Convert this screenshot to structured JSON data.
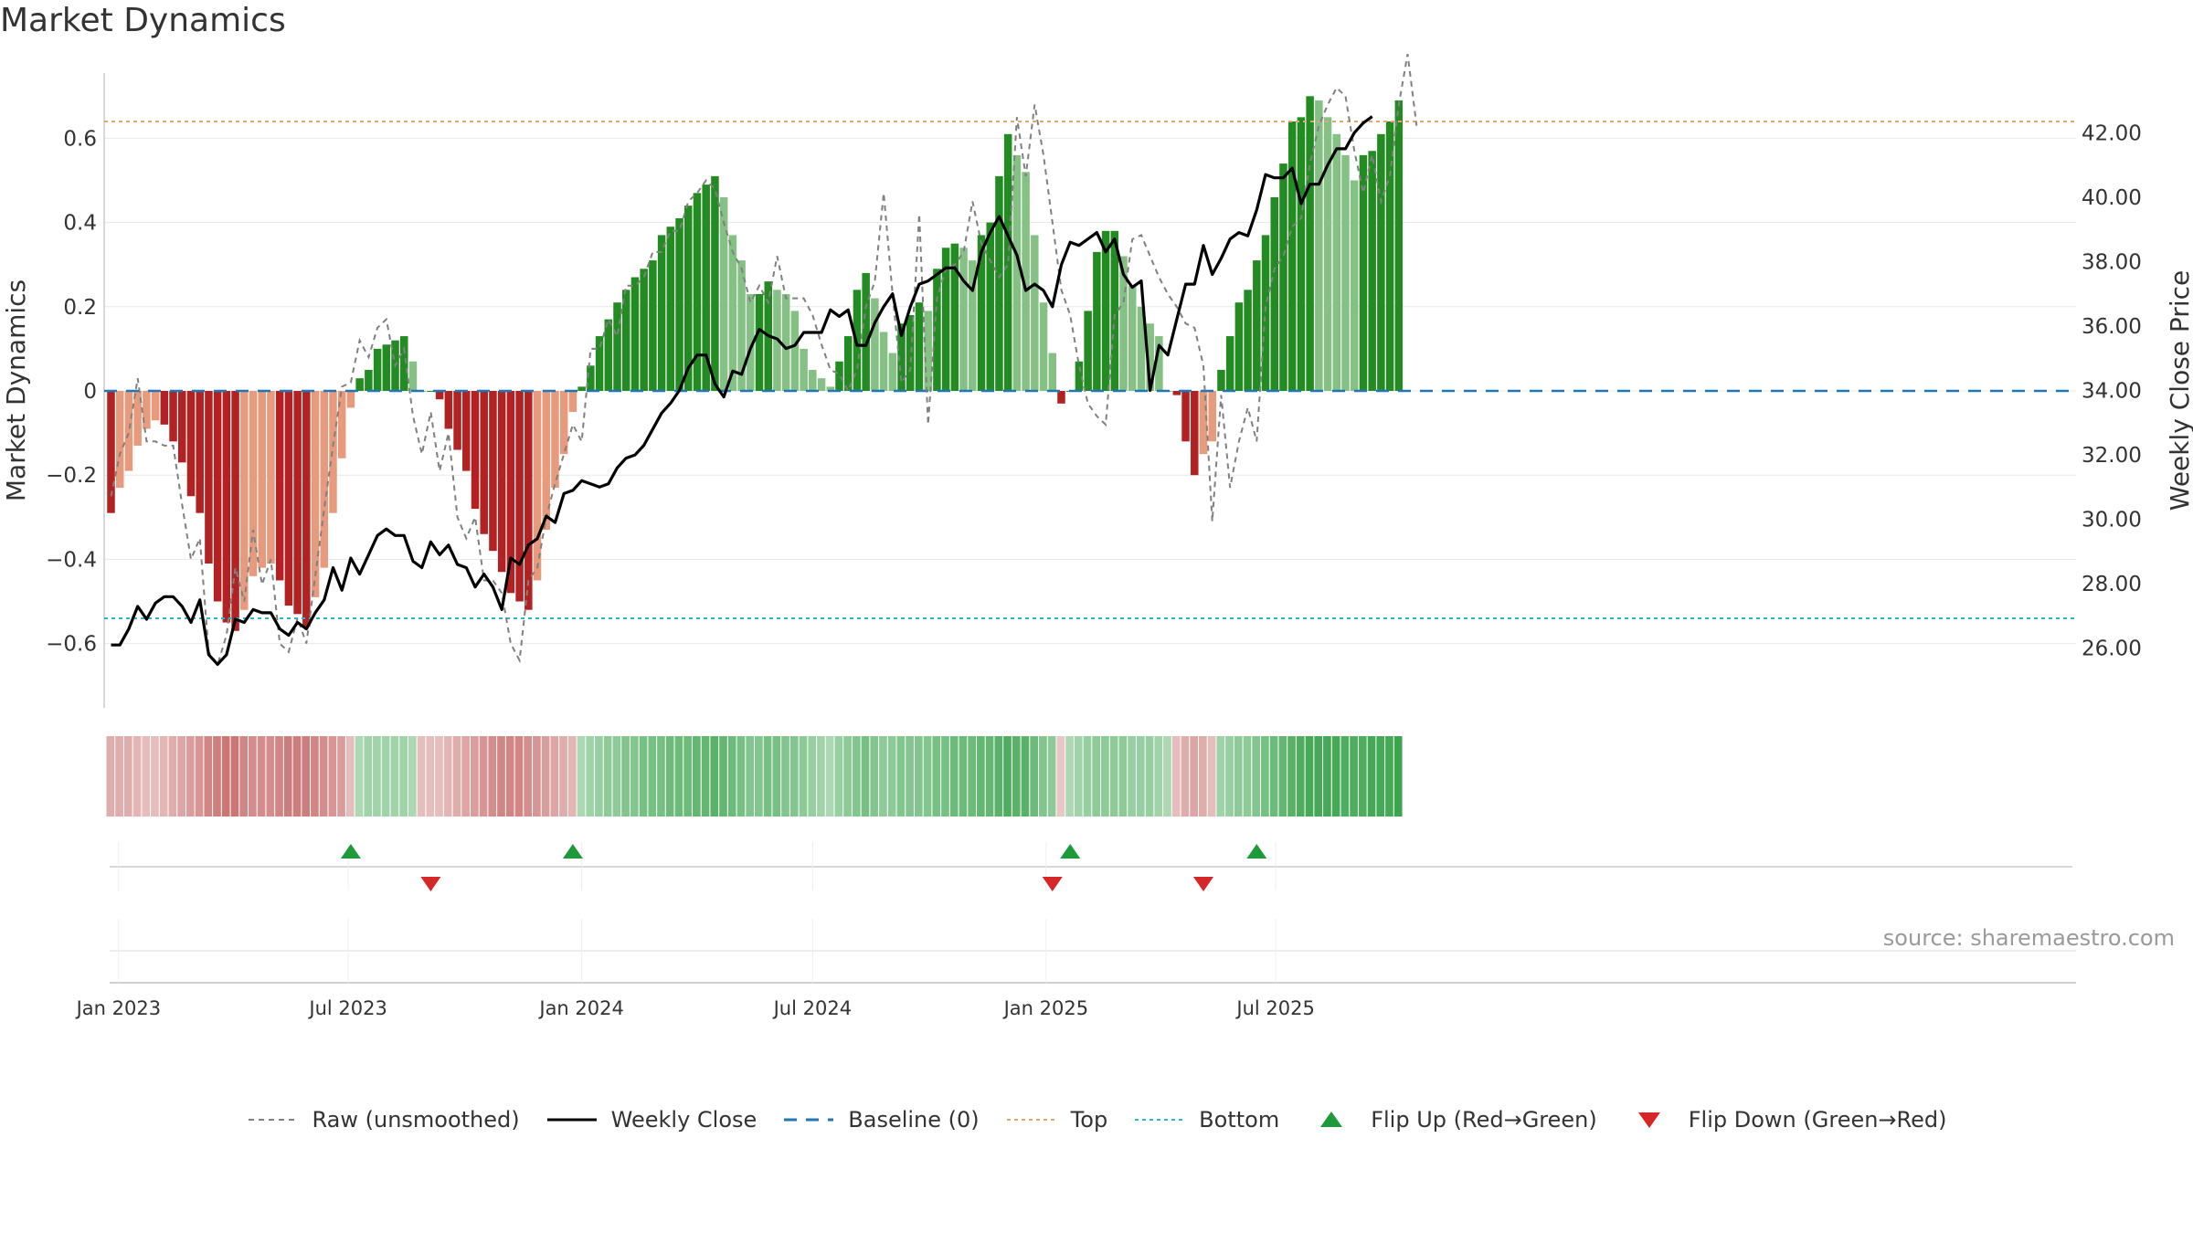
{
  "chart_data": {
    "type": "bar+line",
    "title": "Market Dynamics",
    "source_note": "source: sharemaestro.com",
    "start_date": "2022-12-26",
    "left_axis": {
      "label": "Market Dynamics",
      "ylim": [
        -0.75,
        0.75
      ],
      "ticks": [
        0.6,
        0.4,
        0.2,
        0,
        -0.2,
        -0.4,
        -0.6
      ],
      "tick_labels": [
        "0.6",
        "0.4",
        "0.2",
        "0",
        "−0.2",
        "−0.4",
        "−0.6"
      ]
    },
    "right_axis": {
      "label": "Weekly Close Price",
      "ylim": [
        24.15,
        43.85
      ],
      "ticks": [
        42,
        40,
        38,
        36,
        34,
        32,
        30,
        28,
        26
      ],
      "tick_labels": [
        "42.00",
        "40.00",
        "38.00",
        "36.00",
        "34.00",
        "32.00",
        "30.00",
        "28.00",
        "26.00"
      ]
    },
    "x_axis": {
      "ticks": [
        "2023-01-01",
        "2023-07-01",
        "2024-01-01",
        "2024-07-01",
        "2025-01-01",
        "2025-07-01"
      ],
      "tick_labels": [
        "Jan 2023",
        "Jul 2023",
        "Jan 2024",
        "Jul 2024",
        "Jan 2025",
        "Jul 2025"
      ]
    },
    "reference_lines": {
      "baseline": 0,
      "top": 0.64,
      "bottom": -0.54
    },
    "colors": {
      "neg_strong": "#b22222",
      "neg_weak": "#e89a7c",
      "pos_strong": "#228b22",
      "pos_weak": "#85c185",
      "close": "#000000",
      "raw": "#808080",
      "baseline": "#1f77b4",
      "top": "#e0a96d",
      "bottom": "#2ab7ca",
      "flip_up": "#1f9a3a",
      "flip_down": "#d62728"
    },
    "series": [
      {
        "name": "Raw (unsmoothed)",
        "values": [
          -0.25,
          -0.15,
          -0.1,
          0.03,
          -0.12,
          -0.12,
          -0.13,
          -0.13,
          -0.27,
          -0.4,
          -0.35,
          -0.62,
          -0.65,
          -0.58,
          -0.42,
          -0.5,
          -0.33,
          -0.46,
          -0.4,
          -0.6,
          -0.62,
          -0.54,
          -0.6,
          -0.44,
          -0.28,
          -0.13,
          0.01,
          0.02,
          0.12,
          0.08,
          0.15,
          0.17,
          0.06,
          0.1,
          -0.06,
          -0.15,
          -0.05,
          -0.19,
          -0.1,
          -0.3,
          -0.35,
          -0.3,
          -0.45,
          -0.45,
          -0.48,
          -0.6,
          -0.64,
          -0.45,
          -0.42,
          -0.3,
          -0.22,
          -0.15,
          -0.08,
          -0.12,
          0.1,
          0.1,
          0.17,
          0.13,
          0.25,
          0.25,
          0.27,
          0.33,
          0.33,
          0.38,
          0.38,
          0.45,
          0.47,
          0.5,
          0.48,
          0.4,
          0.33,
          0.29,
          0.21,
          0.25,
          0.21,
          0.32,
          0.22,
          0.22,
          0.22,
          0.18,
          0.11,
          0.05,
          0.04,
          0.0,
          0.05,
          0.2,
          0.26,
          0.47,
          0.23,
          0.02,
          0.05,
          0.42,
          -0.08,
          0.22,
          0.29,
          0.3,
          0.33,
          0.45,
          0.35,
          0.31,
          0.27,
          0.3,
          0.65,
          0.51,
          0.68,
          0.56,
          0.4,
          0.24,
          0.18,
          0.06,
          -0.03,
          -0.06,
          -0.08,
          0.18,
          0.21,
          0.36,
          0.37,
          0.32,
          0.27,
          0.23,
          0.2,
          0.16,
          0.15,
          0.06,
          -0.31,
          -0.01,
          -0.23,
          -0.12,
          -0.04,
          -0.12,
          0.2,
          0.29,
          0.32,
          0.39,
          0.41,
          0.54,
          0.63,
          0.68,
          0.72,
          0.7,
          0.57,
          0.47,
          0.56,
          0.45,
          0.51,
          0.68,
          0.8,
          0.63
        ]
      },
      {
        "name": "Weekly Close",
        "values": [
          26.1,
          26.1,
          26.6,
          27.3,
          26.9,
          27.4,
          27.6,
          27.6,
          27.3,
          26.8,
          27.5,
          25.8,
          25.5,
          25.8,
          26.9,
          26.8,
          27.2,
          27.1,
          27.1,
          26.6,
          26.4,
          26.8,
          26.6,
          27.1,
          27.5,
          28.5,
          27.8,
          28.8,
          28.3,
          28.9,
          29.5,
          29.7,
          29.5,
          29.5,
          28.7,
          28.5,
          29.3,
          28.9,
          29.2,
          28.6,
          28.5,
          27.9,
          28.3,
          27.9,
          27.2,
          28.8,
          28.6,
          29.2,
          29.4,
          30.1,
          29.9,
          30.8,
          30.9,
          31.2,
          31.1,
          31.0,
          31.1,
          31.6,
          31.9,
          32.0,
          32.3,
          32.8,
          33.3,
          33.6,
          34.0,
          34.7,
          35.1,
          35.1,
          34.2,
          33.8,
          34.6,
          34.5,
          35.3,
          35.9,
          35.7,
          35.6,
          35.3,
          35.4,
          35.8,
          35.8,
          35.8,
          36.5,
          36.3,
          36.5,
          35.4,
          35.4,
          36.1,
          36.6,
          37.0,
          35.7,
          36.6,
          37.3,
          37.4,
          37.6,
          37.8,
          37.8,
          37.4,
          37.1,
          38.3,
          38.9,
          39.4,
          38.8,
          38.2,
          37.1,
          37.3,
          37.1,
          36.6,
          37.9,
          38.6,
          38.5,
          38.7,
          38.9,
          38.3,
          38.7,
          37.6,
          37.2,
          37.4,
          34.0,
          35.4,
          35.1,
          36.2,
          37.3,
          37.3,
          38.5,
          37.6,
          38.1,
          38.7,
          38.9,
          38.8,
          39.6,
          40.7,
          40.6,
          40.6,
          40.9,
          39.8,
          40.4,
          40.4,
          41.0,
          41.5,
          41.5,
          42.0,
          42.3,
          42.5
        ]
      },
      {
        "name": "Market Dynamics",
        "values": [
          -0.29,
          -0.23,
          -0.19,
          -0.13,
          -0.09,
          -0.07,
          -0.08,
          -0.12,
          -0.17,
          -0.25,
          -0.29,
          -0.41,
          -0.5,
          -0.55,
          -0.57,
          -0.52,
          -0.44,
          -0.42,
          -0.41,
          -0.45,
          -0.51,
          -0.53,
          -0.56,
          -0.49,
          -0.42,
          -0.29,
          -0.16,
          -0.04,
          0.03,
          0.05,
          0.1,
          0.11,
          0.12,
          0.13,
          0.07,
          0.0,
          0.0,
          -0.02,
          -0.09,
          -0.14,
          -0.19,
          -0.28,
          -0.34,
          -0.38,
          -0.43,
          -0.48,
          -0.5,
          -0.52,
          -0.45,
          -0.33,
          -0.23,
          -0.15,
          -0.05,
          0.01,
          0.06,
          0.13,
          0.17,
          0.21,
          0.24,
          0.27,
          0.29,
          0.31,
          0.37,
          0.39,
          0.41,
          0.44,
          0.47,
          0.49,
          0.51,
          0.46,
          0.37,
          0.31,
          0.23,
          0.23,
          0.26,
          0.24,
          0.23,
          0.19,
          0.1,
          0.05,
          0.03,
          0.01,
          0.07,
          0.13,
          0.24,
          0.28,
          0.22,
          0.14,
          0.09,
          0.16,
          0.18,
          0.21,
          0.19,
          0.29,
          0.34,
          0.35,
          0.34,
          0.31,
          0.37,
          0.4,
          0.51,
          0.61,
          0.56,
          0.52,
          0.37,
          0.21,
          0.09,
          -0.03,
          0.0,
          0.07,
          0.19,
          0.33,
          0.38,
          0.38,
          0.32,
          0.25,
          0.2,
          0.16,
          0.13,
          0.0,
          -0.01,
          -0.12,
          -0.2,
          -0.15,
          -0.12,
          0.05,
          0.13,
          0.21,
          0.24,
          0.31,
          0.37,
          0.46,
          0.54,
          0.64,
          0.65,
          0.7,
          0.69,
          0.65,
          0.61,
          0.56,
          0.5,
          0.56,
          0.57,
          0.61,
          0.64,
          0.69
        ]
      }
    ],
    "heat_band": [
      -0.3,
      -0.3,
      -0.3,
      -0.25,
      -0.2,
      -0.2,
      -0.25,
      -0.3,
      -0.35,
      -0.4,
      -0.45,
      -0.55,
      -0.6,
      -0.65,
      -0.65,
      -0.55,
      -0.5,
      -0.5,
      -0.5,
      -0.55,
      -0.6,
      -0.6,
      -0.6,
      -0.55,
      -0.5,
      -0.45,
      -0.4,
      -0.2,
      0.2,
      0.25,
      0.25,
      0.25,
      0.25,
      0.25,
      0.2,
      -0.2,
      -0.2,
      -0.2,
      -0.25,
      -0.3,
      -0.35,
      -0.4,
      -0.45,
      -0.5,
      -0.55,
      -0.55,
      -0.55,
      -0.5,
      -0.45,
      -0.4,
      -0.35,
      -0.3,
      -0.25,
      0.2,
      0.25,
      0.3,
      0.35,
      0.35,
      0.4,
      0.4,
      0.45,
      0.45,
      0.45,
      0.5,
      0.5,
      0.5,
      0.55,
      0.55,
      0.6,
      0.55,
      0.5,
      0.45,
      0.4,
      0.4,
      0.45,
      0.45,
      0.4,
      0.4,
      0.35,
      0.3,
      0.25,
      0.2,
      0.3,
      0.35,
      0.4,
      0.45,
      0.4,
      0.35,
      0.35,
      0.4,
      0.4,
      0.4,
      0.4,
      0.45,
      0.45,
      0.5,
      0.5,
      0.5,
      0.55,
      0.55,
      0.6,
      0.65,
      0.6,
      0.6,
      0.5,
      0.4,
      0.35,
      -0.15,
      0.2,
      0.25,
      0.3,
      0.35,
      0.35,
      0.35,
      0.35,
      0.3,
      0.3,
      0.3,
      0.25,
      0.2,
      -0.2,
      -0.3,
      -0.35,
      -0.3,
      -0.2,
      0.25,
      0.3,
      0.35,
      0.35,
      0.4,
      0.45,
      0.5,
      0.55,
      0.6,
      0.65,
      0.7,
      0.7,
      0.7,
      0.7,
      0.65,
      0.65,
      0.65,
      0.7,
      0.7,
      0.7,
      0.75
    ],
    "flips": [
      {
        "date": "2023-07-03",
        "type": "up"
      },
      {
        "date": "2023-09-04",
        "type": "down"
      },
      {
        "date": "2023-12-25",
        "type": "up"
      },
      {
        "date": "2025-01-06",
        "type": "down"
      },
      {
        "date": "2025-01-20",
        "type": "up"
      },
      {
        "date": "2025-05-05",
        "type": "down"
      },
      {
        "date": "2025-06-16",
        "type": "up"
      }
    ],
    "legend": [
      {
        "key": "raw",
        "label": "Raw (unsmoothed)"
      },
      {
        "key": "close",
        "label": "Weekly Close"
      },
      {
        "key": "baseline",
        "label": "Baseline (0)"
      },
      {
        "key": "top",
        "label": "Top"
      },
      {
        "key": "bottom",
        "label": "Bottom"
      },
      {
        "key": "flip_up",
        "label": "Flip Up (Red→Green)"
      },
      {
        "key": "flip_down",
        "label": "Flip Down (Green→Red)"
      }
    ]
  }
}
